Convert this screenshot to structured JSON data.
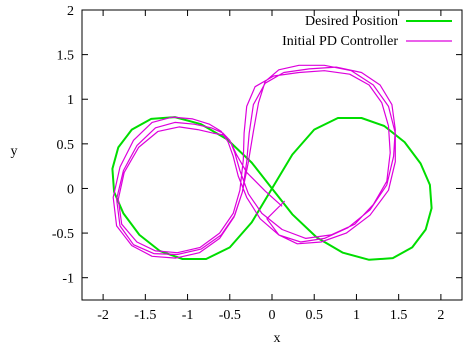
{
  "chart_data": {
    "type": "line",
    "title": "",
    "xlabel": "x",
    "ylabel": "y",
    "xlim": [
      -2.25,
      2.25
    ],
    "ylim": [
      -1.25,
      2
    ],
    "xticks": [
      "-2",
      "-1.5",
      "-1",
      "-0.5",
      "0",
      "0.5",
      "1",
      "1.5",
      "2"
    ],
    "yticks": [
      "-1",
      "-0.5",
      "0",
      "0.5",
      "1",
      "1.5",
      "2"
    ],
    "grid": false,
    "legend_position": "top-right",
    "series": [
      {
        "name": "Desired Position",
        "color": "#00dd00",
        "x": [
          0,
          0.24,
          0.5,
          0.78,
          1.06,
          1.33,
          1.57,
          1.76,
          1.87,
          1.89,
          1.82,
          1.66,
          1.43,
          1.15,
          0.84,
          0.53,
          0.24,
          0,
          -0.24,
          -0.53,
          -0.84,
          -1.15,
          -1.43,
          -1.66,
          -1.82,
          -1.89,
          -1.87,
          -1.76,
          -1.57,
          -1.33,
          -1.06,
          -0.78,
          -0.5,
          -0.24,
          0
        ],
        "y": [
          0,
          0.38,
          0.66,
          0.79,
          0.79,
          0.7,
          0.52,
          0.28,
          0.04,
          -0.22,
          -0.46,
          -0.66,
          -0.78,
          -0.8,
          -0.72,
          -0.55,
          -0.29,
          0,
          0.29,
          0.55,
          0.72,
          0.8,
          0.78,
          0.66,
          0.46,
          0.22,
          -0.04,
          -0.28,
          -0.52,
          -0.7,
          -0.79,
          -0.79,
          -0.66,
          -0.38,
          0
        ]
      },
      {
        "name": "Initial PD Controller",
        "color": "#dd00dd",
        "x": [
          0.12,
          -0.08,
          -0.3,
          -0.42,
          -0.48,
          -0.52,
          -0.58,
          -0.7,
          -0.88,
          -1.1,
          -1.35,
          -1.58,
          -1.75,
          -1.82,
          -1.78,
          -1.6,
          -1.38,
          -1.12,
          -0.85,
          -0.62,
          -0.46,
          -0.38,
          -0.34,
          -0.33,
          -0.3,
          -0.2,
          0.02,
          0.32,
          0.62,
          0.92,
          1.15,
          1.3,
          1.38,
          1.4,
          1.36,
          1.2,
          0.98,
          0.7,
          0.4,
          0.12,
          -0.12,
          -0.28,
          -0.38,
          -0.44,
          -0.5,
          -0.58,
          -0.72,
          -0.92,
          -1.15,
          -1.38,
          -1.6,
          -1.76,
          -1.84,
          -1.8,
          -1.64,
          -1.4,
          -1.12,
          -0.84,
          -0.6,
          -0.44,
          -0.35,
          -0.3,
          -0.27,
          -0.22,
          -0.08,
          0.14,
          0.44,
          0.76,
          1.06,
          1.28,
          1.42,
          1.46,
          1.44,
          1.36,
          1.16,
          0.9,
          0.62,
          0.34,
          0.08,
          -0.14,
          -0.3,
          -0.4,
          -0.46,
          -0.52,
          -0.6,
          -0.74,
          -0.94,
          -1.18,
          -1.42,
          -1.64,
          -1.8,
          -1.88,
          -1.84,
          -1.66,
          -1.42,
          -1.14,
          -0.86,
          -0.62,
          -0.45,
          -0.35,
          -0.28,
          -0.22,
          -0.16,
          -0.08,
          0.08,
          0.32,
          0.62,
          0.94,
          1.2,
          1.38,
          1.46,
          1.46,
          1.38,
          1.16,
          0.88,
          0.58,
          0.3,
          0.08,
          -0.06,
          0.15
        ],
        "y": [
          -0.2,
          -0.03,
          0.18,
          0.38,
          0.5,
          0.56,
          0.6,
          0.62,
          0.66,
          0.69,
          0.64,
          0.46,
          0.18,
          -0.12,
          -0.4,
          -0.6,
          -0.7,
          -0.72,
          -0.66,
          -0.5,
          -0.28,
          -0.02,
          0.32,
          0.62,
          0.92,
          1.14,
          1.26,
          1.3,
          1.32,
          1.28,
          1.16,
          0.96,
          0.7,
          0.4,
          0.08,
          -0.18,
          -0.4,
          -0.52,
          -0.56,
          -0.46,
          -0.28,
          -0.06,
          0.2,
          0.4,
          0.54,
          0.62,
          0.68,
          0.72,
          0.74,
          0.68,
          0.48,
          0.2,
          -0.12,
          -0.42,
          -0.63,
          -0.73,
          -0.74,
          -0.68,
          -0.52,
          -0.3,
          -0.04,
          0.3,
          0.62,
          0.94,
          1.18,
          1.3,
          1.34,
          1.36,
          1.3,
          1.16,
          0.94,
          0.66,
          0.36,
          0.04,
          -0.24,
          -0.44,
          -0.56,
          -0.6,
          -0.52,
          -0.34,
          -0.1,
          0.14,
          0.36,
          0.52,
          0.64,
          0.72,
          0.78,
          0.8,
          0.74,
          0.54,
          0.24,
          -0.1,
          -0.42,
          -0.64,
          -0.76,
          -0.78,
          -0.72,
          -0.56,
          -0.32,
          -0.04,
          0.3,
          0.64,
          0.96,
          1.2,
          1.33,
          1.38,
          1.38,
          1.32,
          1.16,
          0.92,
          0.62,
          0.3,
          -0.02,
          -0.3,
          -0.5,
          -0.6,
          -0.62,
          -0.52,
          -0.34,
          -0.14
        ]
      }
    ]
  }
}
